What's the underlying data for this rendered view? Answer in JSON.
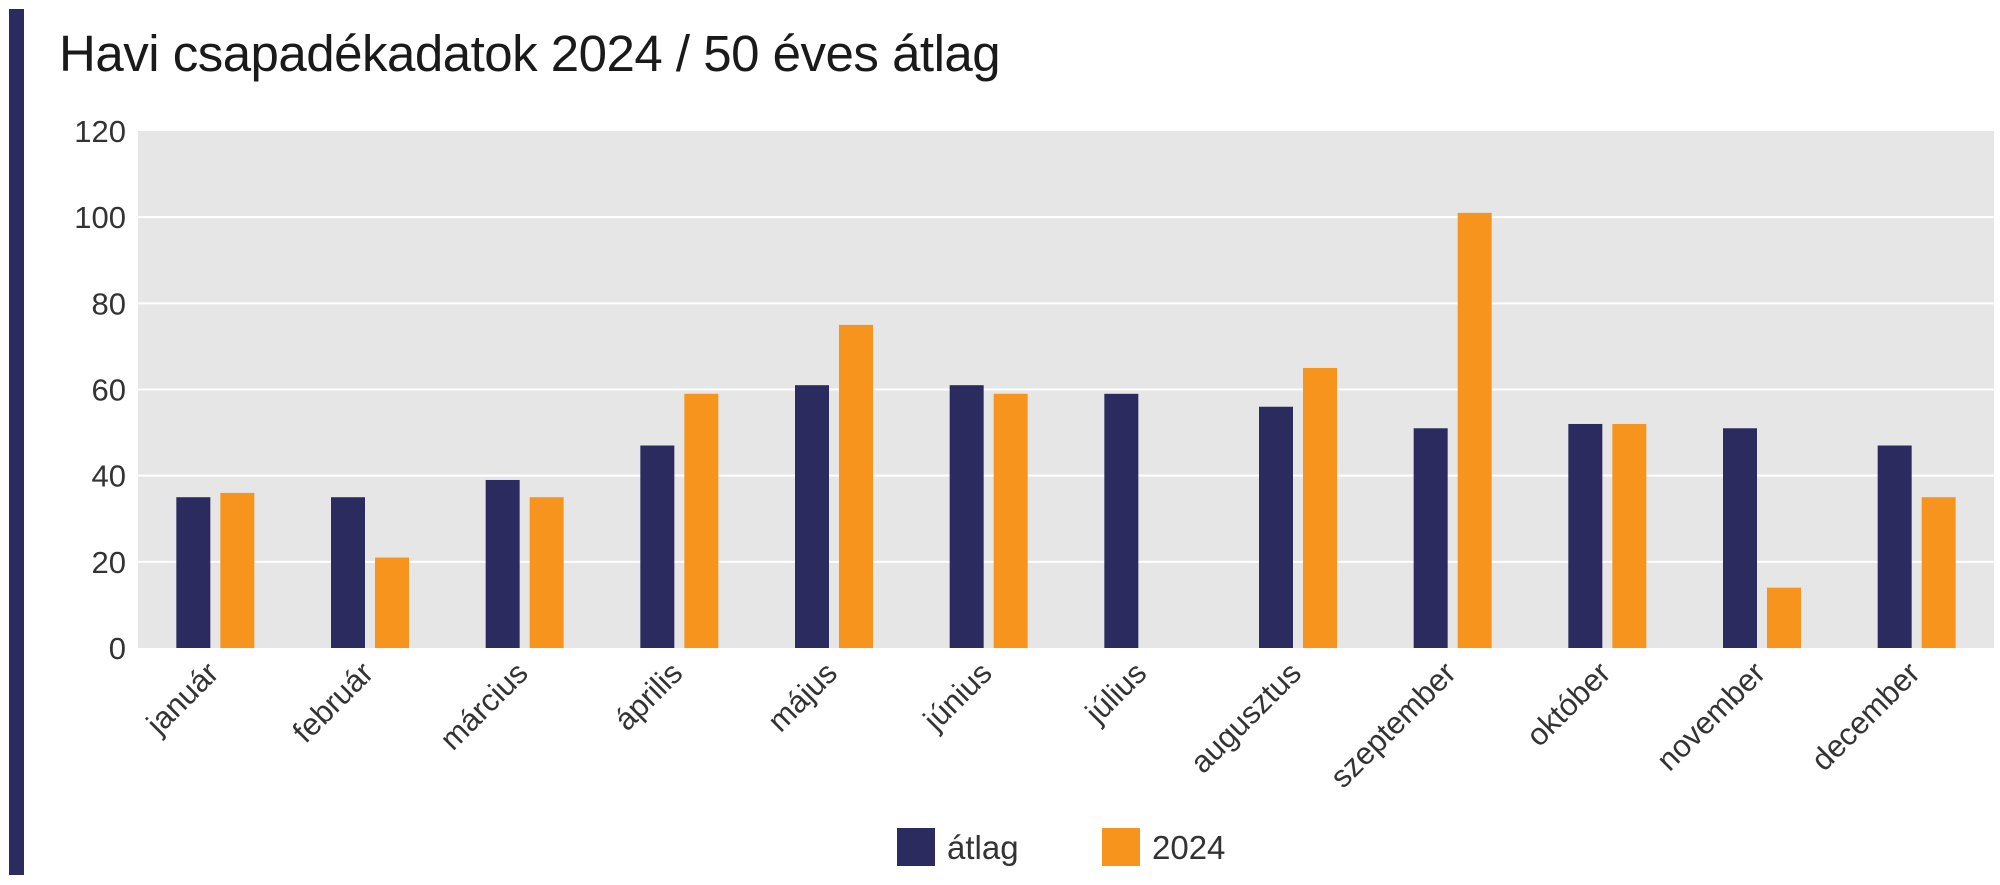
{
  "chart_data": {
    "type": "bar",
    "title": "Havi csapadékadatok 2024 / 50 éves átlag",
    "categories": [
      "január",
      "február",
      "március",
      "április",
      "május",
      "június",
      "július",
      "augusztus",
      "szeptember",
      "október",
      "november",
      "december"
    ],
    "series": [
      {
        "name": "átlag",
        "color": "#2b2b60",
        "values": [
          35,
          35,
          39,
          47,
          61,
          61,
          59,
          56,
          51,
          52,
          51,
          47
        ]
      },
      {
        "name": "2024",
        "color": "#f7941d",
        "values": [
          36,
          21,
          35,
          59,
          75,
          59,
          0,
          65,
          101,
          52,
          14,
          35
        ]
      }
    ],
    "ylim": [
      0,
      120
    ],
    "yticks": [
      0,
      20,
      40,
      60,
      80,
      100,
      120
    ],
    "grid": true,
    "plot_background": "#e6e6e6",
    "gridline_color": "#ffffff",
    "legend": "bottom-center",
    "accent_color": "#2b2b60"
  }
}
